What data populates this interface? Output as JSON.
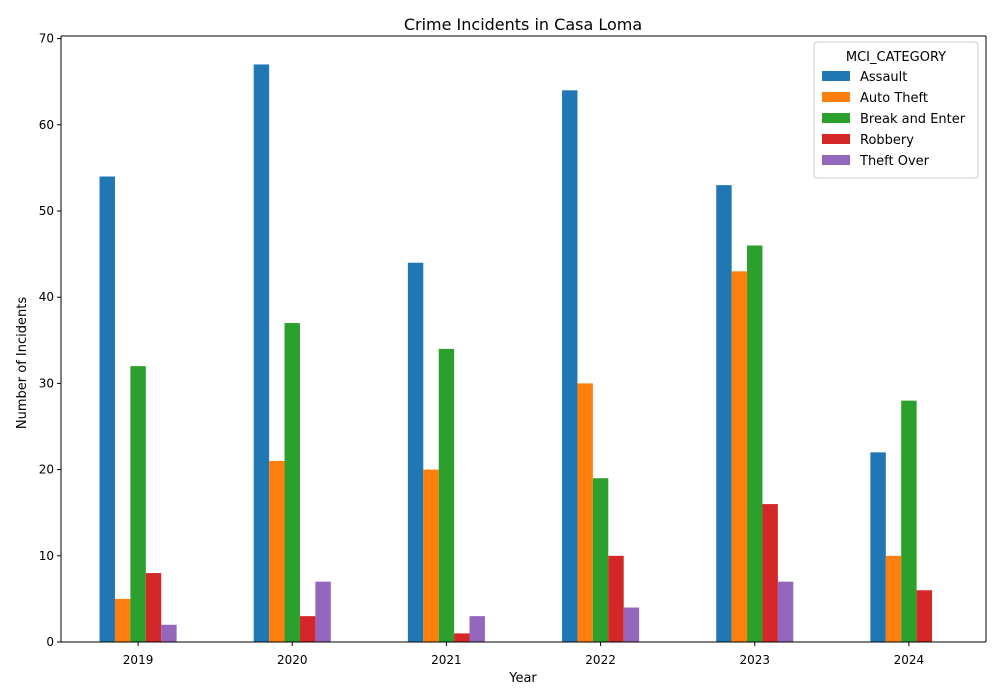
{
  "chart_data": {
    "type": "bar",
    "title": "Crime Incidents in Casa Loma",
    "xlabel": "Year",
    "ylabel": "Number of Incidents",
    "categories": [
      "2019",
      "2020",
      "2021",
      "2022",
      "2023",
      "2024"
    ],
    "ylim": [
      0,
      70.3
    ],
    "yticks": [
      0,
      10,
      20,
      30,
      40,
      50,
      60,
      70
    ],
    "legend": {
      "title": "MCI_CATEGORY",
      "placement": "top-right"
    },
    "grid": false,
    "series": [
      {
        "name": "Assault",
        "color": "#1f77b4",
        "values": [
          54,
          67,
          44,
          64,
          53,
          22
        ]
      },
      {
        "name": "Auto Theft",
        "color": "#ff7f0e",
        "values": [
          5,
          21,
          20,
          30,
          43,
          10
        ]
      },
      {
        "name": "Break and Enter",
        "color": "#2ca02c",
        "values": [
          32,
          37,
          34,
          19,
          46,
          28
        ]
      },
      {
        "name": "Robbery",
        "color": "#d62728",
        "values": [
          8,
          3,
          1,
          10,
          16,
          6
        ]
      },
      {
        "name": "Theft Over",
        "color": "#9467bd",
        "values": [
          2,
          7,
          3,
          4,
          7,
          0
        ]
      }
    ]
  }
}
